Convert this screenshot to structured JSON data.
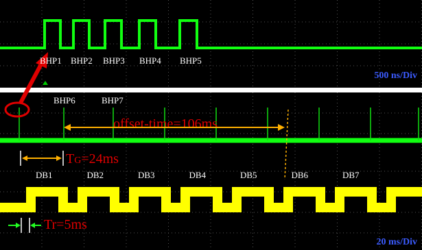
{
  "top_panel": {
    "pulse_labels": [
      "BHP1",
      "BHP2",
      "BHP3",
      "BHP4",
      "BHP5"
    ],
    "timebase": "500 ns/Div"
  },
  "bottom_panel": {
    "pulse_labels": [
      "BHP6",
      "BHP7"
    ],
    "offset_label": "offset-time=106ms",
    "tg_label": {
      "main": "T",
      "sub": "G",
      "rest": "=24ms"
    },
    "db_labels": [
      "DB1",
      "DB2",
      "DB3",
      "DB4",
      "DB5",
      "DB6",
      "DB7"
    ],
    "tr_label": "Tr=5ms",
    "timebase": "20 ms/Div"
  }
}
